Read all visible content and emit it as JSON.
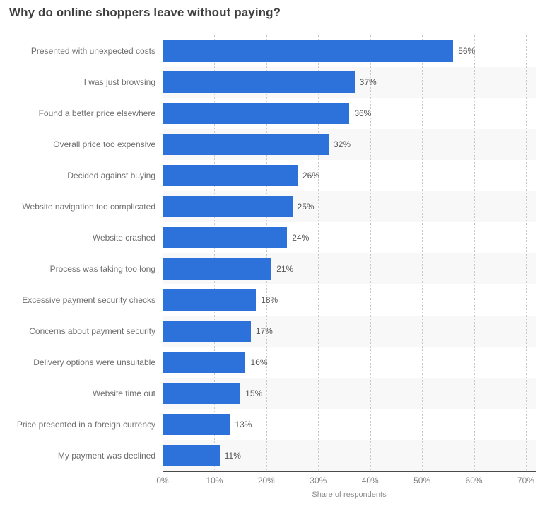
{
  "header": {
    "title": "Why do online shoppers leave without paying?"
  },
  "chart_data": {
    "type": "bar",
    "orientation": "horizontal",
    "title": "Why do online shoppers leave without paying?",
    "categories": [
      "Presented with unexpected costs",
      "I was just browsing",
      "Found a better price elsewhere",
      "Overall price too expensive",
      "Decided against buying",
      "Website navigation too complicated",
      "Website crashed",
      "Process was taking too long",
      "Excessive payment security checks",
      "Concerns about payment security",
      "Delivery options were unsuitable",
      "Website time out",
      "Price presented in a foreign currency",
      "My payment was declined"
    ],
    "values": [
      56,
      37,
      36,
      32,
      26,
      25,
      24,
      21,
      18,
      17,
      16,
      15,
      13,
      11
    ],
    "value_label_suffix": "%",
    "xlabel": "Share of respondents",
    "ylabel": "",
    "xlim": [
      0,
      70
    ],
    "xticks": [
      "0%",
      "10%",
      "20%",
      "30%",
      "40%",
      "50%",
      "60%",
      "70%"
    ],
    "grid": "vertical-dotted",
    "legend": "none",
    "bar_color": "#2d72da",
    "row_stripe_color": "#f8f8f8"
  }
}
